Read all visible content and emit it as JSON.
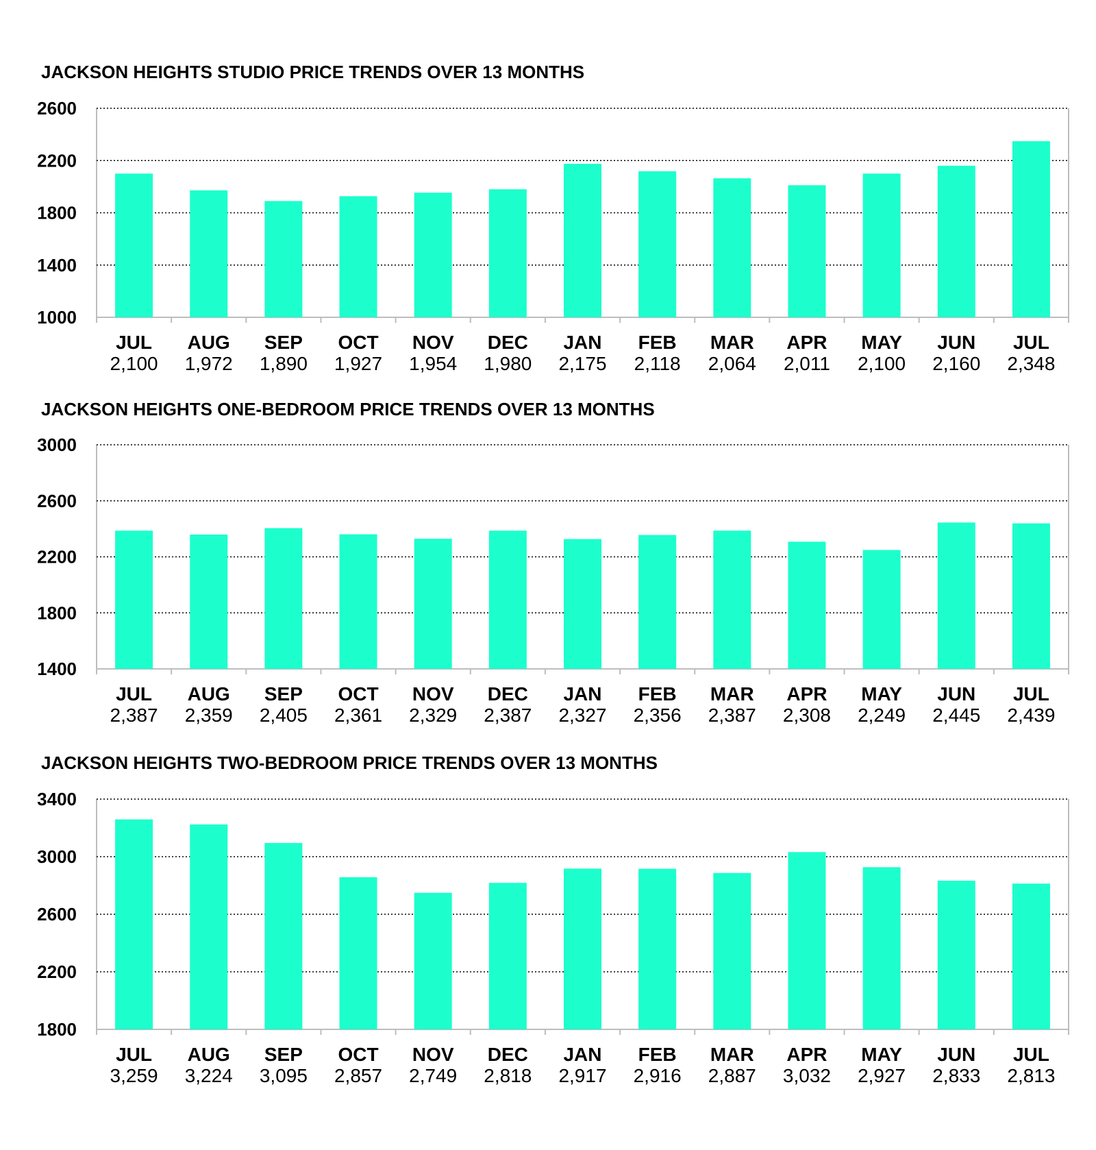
{
  "style": {
    "bar_color": "#1CFFCC",
    "grid_color": "#000000",
    "axis_color": "#bdbdbd"
  },
  "chart_data": [
    {
      "type": "bar",
      "title": "JACKSON HEIGHTS STUDIO PRICE TRENDS OVER 13 MONTHS",
      "categories": [
        "JUL",
        "AUG",
        "SEP",
        "OCT",
        "NOV",
        "DEC",
        "JAN",
        "FEB",
        "MAR",
        "APR",
        "MAY",
        "JUN",
        "JUL"
      ],
      "values": [
        2100,
        1972,
        1890,
        1927,
        1954,
        1980,
        2175,
        2118,
        2064,
        2011,
        2100,
        2160,
        2348
      ],
      "value_labels": [
        "2,100",
        "1,972",
        "1,890",
        "1,927",
        "1,954",
        "1,980",
        "2,175",
        "2,118",
        "2,064",
        "2,011",
        "2,100",
        "2,160",
        "2,348"
      ],
      "ylim": [
        1000,
        2600
      ],
      "yticks": [
        "1000",
        "1400",
        "1800",
        "2200",
        "2600"
      ],
      "grid": true,
      "xlabel": "",
      "ylabel": ""
    },
    {
      "type": "bar",
      "title": "JACKSON HEIGHTS ONE-BEDROOM PRICE TRENDS OVER 13 MONTHS",
      "categories": [
        "JUL",
        "AUG",
        "SEP",
        "OCT",
        "NOV",
        "DEC",
        "JAN",
        "FEB",
        "MAR",
        "APR",
        "MAY",
        "JUN",
        "JUL"
      ],
      "values": [
        2387,
        2359,
        2405,
        2361,
        2329,
        2387,
        2327,
        2356,
        2387,
        2308,
        2249,
        2445,
        2439
      ],
      "value_labels": [
        "2,387",
        "2,359",
        "2,405",
        "2,361",
        "2,329",
        "2,387",
        "2,327",
        "2,356",
        "2,387",
        "2,308",
        "2,249",
        "2,445",
        "2,439"
      ],
      "ylim": [
        1400,
        3000
      ],
      "yticks": [
        "1400",
        "1800",
        "2200",
        "2600",
        "3000"
      ],
      "grid": true,
      "xlabel": "",
      "ylabel": ""
    },
    {
      "type": "bar",
      "title": "JACKSON HEIGHTS TWO-BEDROOM PRICE TRENDS OVER 13 MONTHS",
      "categories": [
        "JUL",
        "AUG",
        "SEP",
        "OCT",
        "NOV",
        "DEC",
        "JAN",
        "FEB",
        "MAR",
        "APR",
        "MAY",
        "JUN",
        "JUL"
      ],
      "values": [
        3259,
        3224,
        3095,
        2857,
        2749,
        2818,
        2917,
        2916,
        2887,
        3032,
        2927,
        2833,
        2813
      ],
      "value_labels": [
        "3,259",
        "3,224",
        "3,095",
        "2,857",
        "2,749",
        "2,818",
        "2,917",
        "2,916",
        "2,887",
        "3,032",
        "2,927",
        "2,833",
        "2,813"
      ],
      "ylim": [
        1800,
        3400
      ],
      "yticks": [
        "1800",
        "2200",
        "2600",
        "3000",
        "3400"
      ],
      "grid": true,
      "xlabel": "",
      "ylabel": ""
    }
  ]
}
